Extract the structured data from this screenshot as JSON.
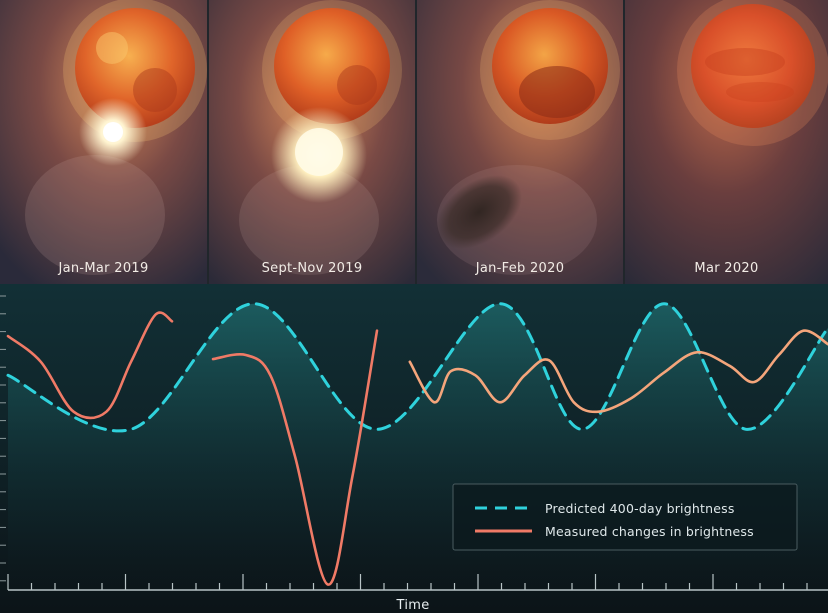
{
  "panels": [
    {
      "label": "Jan-Mar 2019"
    },
    {
      "label": "Sept-Nov  2019"
    },
    {
      "label": "Jan-Feb 2020"
    },
    {
      "label": "Mar 2020"
    }
  ],
  "colors": {
    "predicted": "#2fd2dc",
    "measured": "#f07a66",
    "measured_light": "#f4a57b",
    "background": "#0b1216"
  },
  "chart_data": {
    "type": "line",
    "title": "",
    "xlabel": "Time",
    "ylabel": "",
    "x_ticks": "unlabeled",
    "y_ticks": "unlabeled",
    "grid": false,
    "legend_position": "bottom-right",
    "series": [
      {
        "name": "Predicted 400-day brightness",
        "style": "dashed",
        "x": [
          0,
          15,
          30,
          45,
          60,
          70,
          80,
          90,
          100
        ],
        "y": [
          0.45,
          0.05,
          0.98,
          0.05,
          0.98,
          0.05,
          0.98,
          0.05,
          0.8
        ]
      },
      {
        "name": "Measured changes in brightness",
        "style": "solid",
        "segments": [
          {
            "x": [
              0,
              4,
              8,
              12,
              15,
              18,
              20
            ],
            "y": [
              0.74,
              0.55,
              0.18,
              0.18,
              0.55,
              0.9,
              0.85
            ]
          },
          {
            "x": [
              25,
              29,
              32,
              35,
              39,
              42,
              45
            ],
            "y": [
              0.57,
              0.6,
              0.45,
              -0.15,
              -1.1,
              -0.3,
              0.78
            ]
          },
          {
            "x": [
              49,
              52,
              54,
              57,
              60,
              63,
              66,
              69,
              72,
              76,
              80,
              84,
              88,
              91,
              94,
              97,
              100
            ],
            "y": [
              0.55,
              0.25,
              0.48,
              0.45,
              0.25,
              0.45,
              0.56,
              0.25,
              0.18,
              0.28,
              0.47,
              0.62,
              0.52,
              0.4,
              0.6,
              0.78,
              0.68
            ]
          }
        ]
      }
    ]
  }
}
